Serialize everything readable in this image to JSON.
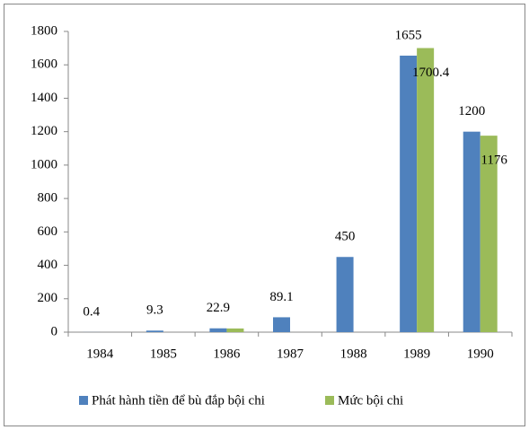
{
  "chart_data": {
    "type": "bar",
    "categories": [
      "1984",
      "1985",
      "1986",
      "1987",
      "1988",
      "1989",
      "1990"
    ],
    "series": [
      {
        "name": "Phát hành tiền để bù đắp bội chi",
        "color": "#4f81bd",
        "values": [
          0.4,
          9.3,
          22.9,
          89.1,
          450,
          1655,
          1200
        ]
      },
      {
        "name": "Mức bội chi",
        "color": "#9bbb59",
        "values": [
          null,
          null,
          22,
          null,
          null,
          1700.4,
          1176
        ],
        "value_labels": [
          null,
          null,
          null,
          null,
          null,
          "1700.4",
          "1176"
        ]
      }
    ],
    "ylim": [
      0,
      1800
    ],
    "yticks": [
      0,
      200,
      400,
      600,
      800,
      1000,
      1200,
      1400,
      1600,
      1800
    ],
    "grid": false,
    "legend": "bottom"
  }
}
